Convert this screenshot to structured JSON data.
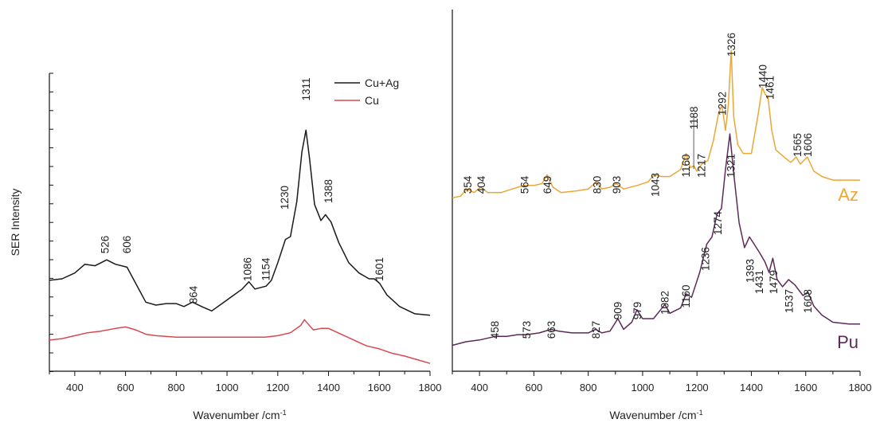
{
  "chart_data": [
    {
      "type": "line",
      "panel": "left",
      "xlabel": "Wavenumber /cm",
      "xlabel_sup": "-1",
      "ylabel": "SER Intensity",
      "xlim": [
        300,
        1800
      ],
      "ylim": [
        0,
        10
      ],
      "x_ticks": [
        400,
        600,
        800,
        1000,
        1200,
        1400,
        1600,
        1800
      ],
      "x_tick_labels": [
        "400",
        "600",
        "800",
        "1000",
        "1200",
        "1400",
        "1600",
        "1800"
      ],
      "legend_position": "top-right",
      "colors": {
        "cu_ag": "#1a1a1a",
        "cu": "#d9484f"
      },
      "series": [
        {
          "key": "cu_ag",
          "name": "Cu+Ag",
          "points": [
            [
              300,
              2.9
            ],
            [
              350,
              2.95
            ],
            [
              400,
              3.15
            ],
            [
              440,
              3.45
            ],
            [
              480,
              3.4
            ],
            [
              526,
              3.6
            ],
            [
              560,
              3.45
            ],
            [
              606,
              3.35
            ],
            [
              640,
              2.8
            ],
            [
              680,
              2.15
            ],
            [
              720,
              2.05
            ],
            [
              760,
              2.1
            ],
            [
              800,
              2.1
            ],
            [
              830,
              2.0
            ],
            [
              864,
              2.15
            ],
            [
              900,
              2.0
            ],
            [
              940,
              1.85
            ],
            [
              980,
              2.1
            ],
            [
              1020,
              2.35
            ],
            [
              1060,
              2.6
            ],
            [
              1086,
              2.85
            ],
            [
              1110,
              2.6
            ],
            [
              1154,
              2.7
            ],
            [
              1175,
              2.9
            ],
            [
              1200,
              3.5
            ],
            [
              1230,
              4.3
            ],
            [
              1250,
              4.4
            ],
            [
              1275,
              5.6
            ],
            [
              1295,
              7.3
            ],
            [
              1311,
              8.05
            ],
            [
              1325,
              7.1
            ],
            [
              1345,
              5.5
            ],
            [
              1370,
              4.95
            ],
            [
              1388,
              5.15
            ],
            [
              1410,
              4.9
            ],
            [
              1440,
              4.2
            ],
            [
              1480,
              3.5
            ],
            [
              1520,
              3.15
            ],
            [
              1560,
              2.95
            ],
            [
              1580,
              2.95
            ],
            [
              1601,
              2.8
            ],
            [
              1630,
              2.4
            ],
            [
              1680,
              2.0
            ],
            [
              1740,
              1.75
            ],
            [
              1800,
              1.7
            ]
          ]
        },
        {
          "key": "cu",
          "name": "Cu",
          "points": [
            [
              300,
              0.85
            ],
            [
              350,
              0.9
            ],
            [
              400,
              1.0
            ],
            [
              450,
              1.1
            ],
            [
              500,
              1.15
            ],
            [
              560,
              1.25
            ],
            [
              600,
              1.3
            ],
            [
              640,
              1.2
            ],
            [
              680,
              1.05
            ],
            [
              720,
              1.0
            ],
            [
              800,
              0.95
            ],
            [
              900,
              0.95
            ],
            [
              1000,
              0.95
            ],
            [
              1100,
              0.95
            ],
            [
              1150,
              0.95
            ],
            [
              1200,
              1.0
            ],
            [
              1250,
              1.1
            ],
            [
              1290,
              1.35
            ],
            [
              1305,
              1.55
            ],
            [
              1320,
              1.4
            ],
            [
              1340,
              1.2
            ],
            [
              1370,
              1.25
            ],
            [
              1400,
              1.25
            ],
            [
              1450,
              1.05
            ],
            [
              1500,
              0.85
            ],
            [
              1550,
              0.65
            ],
            [
              1600,
              0.55
            ],
            [
              1650,
              0.4
            ],
            [
              1700,
              0.3
            ],
            [
              1760,
              0.15
            ],
            [
              1800,
              0.05
            ]
          ]
        }
      ],
      "annotations": [
        "526",
        "606",
        "864",
        "1086",
        "1154",
        "1230",
        "1311",
        "1388",
        "1601"
      ]
    },
    {
      "type": "line",
      "panel": "right",
      "xlabel": "Wavenumber /cm",
      "xlabel_sup": "-1",
      "xlim": [
        300,
        1800
      ],
      "ylim": [
        0,
        10
      ],
      "x_ticks": [
        400,
        600,
        800,
        1000,
        1200,
        1400,
        1600,
        1800
      ],
      "x_tick_labels": [
        "400",
        "600",
        "800",
        "1000",
        "1200",
        "1400",
        "1600",
        "1800"
      ],
      "colors": {
        "az": "#eba735",
        "pu": "#5c2a5a"
      },
      "series": [
        {
          "key": "az",
          "name": "Az",
          "points": [
            [
              300,
              4.7
            ],
            [
              330,
              4.75
            ],
            [
              354,
              4.95
            ],
            [
              380,
              4.85
            ],
            [
              404,
              5.0
            ],
            [
              430,
              4.85
            ],
            [
              480,
              4.85
            ],
            [
              520,
              4.95
            ],
            [
              564,
              5.05
            ],
            [
              600,
              5.05
            ],
            [
              630,
              5.1
            ],
            [
              649,
              5.35
            ],
            [
              670,
              5.0
            ],
            [
              700,
              4.85
            ],
            [
              760,
              4.9
            ],
            [
              800,
              4.95
            ],
            [
              830,
              5.15
            ],
            [
              850,
              4.95
            ],
            [
              880,
              5.0
            ],
            [
              903,
              5.1
            ],
            [
              930,
              4.95
            ],
            [
              980,
              5.05
            ],
            [
              1020,
              5.15
            ],
            [
              1043,
              5.35
            ],
            [
              1070,
              5.3
            ],
            [
              1100,
              5.3
            ],
            [
              1140,
              5.5
            ],
            [
              1160,
              5.95
            ],
            [
              1175,
              5.55
            ],
            [
              1188,
              5.6
            ],
            [
              1200,
              5.45
            ],
            [
              1217,
              5.65
            ],
            [
              1240,
              5.75
            ],
            [
              1260,
              6.3
            ],
            [
              1280,
              7.1
            ],
            [
              1292,
              7.3
            ],
            [
              1305,
              6.6
            ],
            [
              1315,
              7.3
            ],
            [
              1326,
              8.85
            ],
            [
              1335,
              7.0
            ],
            [
              1350,
              6.2
            ],
            [
              1370,
              5.95
            ],
            [
              1400,
              5.95
            ],
            [
              1425,
              7.05
            ],
            [
              1440,
              7.8
            ],
            [
              1452,
              7.6
            ],
            [
              1461,
              7.55
            ],
            [
              1475,
              6.6
            ],
            [
              1490,
              6.05
            ],
            [
              1520,
              5.85
            ],
            [
              1545,
              5.7
            ],
            [
              1565,
              5.85
            ],
            [
              1580,
              5.65
            ],
            [
              1606,
              5.85
            ],
            [
              1630,
              5.45
            ],
            [
              1660,
              5.3
            ],
            [
              1700,
              5.2
            ],
            [
              1760,
              5.2
            ],
            [
              1800,
              5.2
            ]
          ]
        },
        {
          "key": "pu",
          "name": "Pu",
          "points": [
            [
              300,
              0.55
            ],
            [
              350,
              0.65
            ],
            [
              400,
              0.7
            ],
            [
              458,
              0.8
            ],
            [
              500,
              0.8
            ],
            [
              540,
              0.85
            ],
            [
              573,
              0.85
            ],
            [
              620,
              0.9
            ],
            [
              663,
              1.0
            ],
            [
              690,
              0.95
            ],
            [
              740,
              0.9
            ],
            [
              800,
              0.9
            ],
            [
              827,
              1.0
            ],
            [
              850,
              0.9
            ],
            [
              880,
              0.95
            ],
            [
              909,
              1.3
            ],
            [
              930,
              1.0
            ],
            [
              960,
              1.2
            ],
            [
              979,
              1.55
            ],
            [
              1000,
              1.3
            ],
            [
              1040,
              1.3
            ],
            [
              1082,
              1.7
            ],
            [
              1100,
              1.45
            ],
            [
              1140,
              1.6
            ],
            [
              1160,
              2.0
            ],
            [
              1180,
              1.9
            ],
            [
              1210,
              2.6
            ],
            [
              1236,
              3.4
            ],
            [
              1255,
              3.6
            ],
            [
              1274,
              4.25
            ],
            [
              1290,
              4.4
            ],
            [
              1305,
              5.5
            ],
            [
              1321,
              6.5
            ],
            [
              1335,
              5.4
            ],
            [
              1355,
              4.0
            ],
            [
              1375,
              3.3
            ],
            [
              1393,
              3.6
            ],
            [
              1410,
              3.4
            ],
            [
              1431,
              3.15
            ],
            [
              1450,
              2.9
            ],
            [
              1465,
              2.6
            ],
            [
              1479,
              3.0
            ],
            [
              1495,
              2.4
            ],
            [
              1515,
              2.2
            ],
            [
              1537,
              2.4
            ],
            [
              1560,
              2.25
            ],
            [
              1590,
              1.95
            ],
            [
              1608,
              2.05
            ],
            [
              1630,
              1.65
            ],
            [
              1660,
              1.4
            ],
            [
              1700,
              1.2
            ],
            [
              1760,
              1.15
            ],
            [
              1800,
              1.15
            ]
          ]
        }
      ],
      "annotations": [
        "354",
        "404",
        "564",
        "649",
        "830",
        "903",
        "1043",
        "1160",
        "1188",
        "1217",
        "1292",
        "1326",
        "1440",
        "1461",
        "1565",
        "1606",
        "458",
        "573",
        "663",
        "827",
        "909",
        "979",
        "1082",
        "1160",
        "1236",
        "1274",
        "1321",
        "1393",
        "1431",
        "1479",
        "1537",
        "1608"
      ]
    }
  ]
}
